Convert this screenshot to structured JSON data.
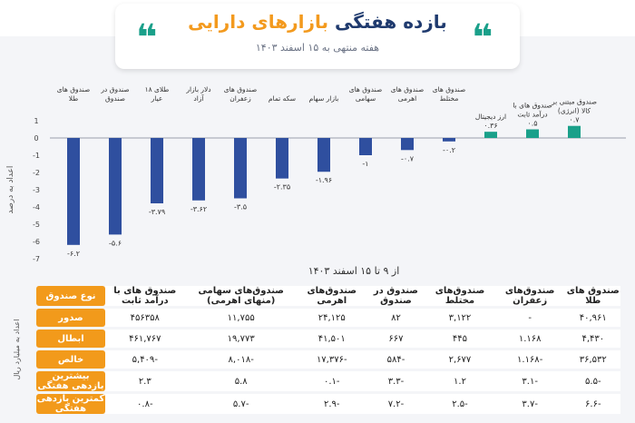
{
  "header": {
    "title_part1": "بازده هفتگی",
    "title_part2": "بازارهای دارایی",
    "subtitle": "هفته منتهی به ۱۵ اسفند ۱۴۰۳",
    "quote_glyph": "❝"
  },
  "colors": {
    "negative": "#2f4f9f",
    "positive": "#1aa08a",
    "accent": "#f29a1b",
    "title": "#1f3a6e"
  },
  "chart_data": {
    "type": "bar",
    "ylabel": "اعداد به درصد",
    "ylim": [
      -7,
      1
    ],
    "yticks": [
      "1",
      "0",
      "-1",
      "-2",
      "-3",
      "-4",
      "-5",
      "-6",
      "-7"
    ],
    "categories": [
      "صندوق های طلا",
      "صندوق در صندوق",
      "طلای ۱۸ عیار",
      "دلار بازار آزاد",
      "صندوق های زعفران",
      "سکه تمام",
      "بازار سهام",
      "صندوق های سهامی",
      "صندوق های اهرمی",
      "صندوق های مختلط",
      "ارز دیجیتال",
      "صندوق های با درآمد ثابت",
      "صندوق مبتنی بر کالا (انرژی)"
    ],
    "values": [
      -6.2,
      -5.6,
      -3.79,
      -3.62,
      -3.5,
      -2.35,
      -1.96,
      -1,
      -0.7,
      -0.2,
      0.36,
      0.5,
      0.7
    ],
    "value_labels": [
      "-۶.۲",
      "-۵.۶",
      "-۳.۷۹",
      "-۳.۶۲",
      "-۳.۵",
      "-۲.۳۵",
      "-۱.۹۶",
      "-۱",
      "-۰.۷",
      "-۰.۲",
      "۰.۳۶",
      "۰.۵",
      "۰.۷"
    ]
  },
  "table": {
    "subtitle": "از ۹ تا ۱۵ اسفند ۱۴۰۳",
    "side_label": "اعداد به میلیارد ریال",
    "corner_label": "نوع صندوق",
    "columns": [
      "صندوق های با درآمد ثابت",
      "صندوق‌های سهامی (منهای اهرمی)",
      "صندوق‌های اهرمی",
      "صندوق در صندوق",
      "صندوق‌های مختلط",
      "صندوق‌های زعفران",
      "صندوق های طلا"
    ],
    "rows": [
      {
        "label": "صدور",
        "cells": [
          "۴۵۶۳۵۸",
          "۱۱,۷۵۵",
          "۲۴,۱۲۵",
          "۸۲",
          "۳,۱۲۲",
          "-",
          "۴۰,۹۶۱"
        ]
      },
      {
        "label": "ابطال",
        "cells": [
          "۴۶۱,۷۶۷",
          "۱۹,۷۷۳",
          "۴۱,۵۰۱",
          "۶۶۷",
          "۴۴۵",
          "۱.۱۶۸",
          "۴,۴۳۰"
        ]
      },
      {
        "label": "خالص",
        "cells": [
          "-۵,۴۰۹",
          "-۸,۰۱۸",
          "-۱۷,۳۷۶",
          "-۵۸۴",
          "۲,۶۷۷",
          "-۱.۱۶۸",
          "۳۶,۵۳۲"
        ]
      },
      {
        "label": "بیشترین بازدهی هفتگی",
        "cells": [
          "۲.۳",
          "۵.۸",
          "-۰.۱",
          "-۳.۳",
          "۱.۲",
          "-۳.۱",
          "-۵.۵"
        ]
      },
      {
        "label": "کمترین بازدهی هفتگی",
        "cells": [
          "-۰.۸",
          "-۵.۷",
          "-۲.۹",
          "-۷.۲",
          "-۲.۵",
          "-۳.۷",
          "-۶.۶"
        ]
      }
    ]
  }
}
